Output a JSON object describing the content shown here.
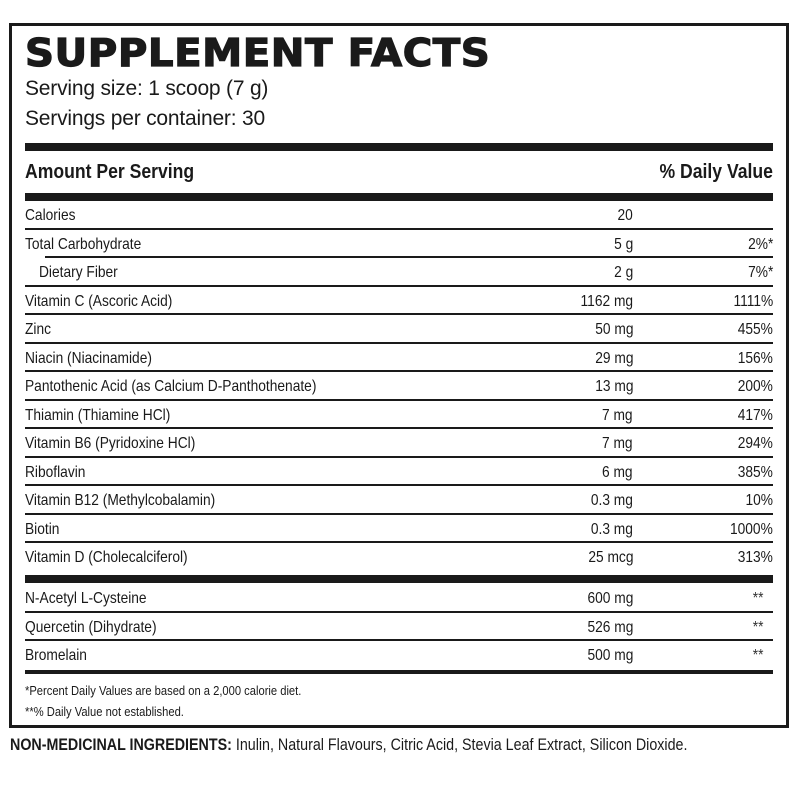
{
  "label": {
    "title": "SUPPLEMENT FACTS",
    "serving_size": "Serving size: 1 scoop (7 g)",
    "servings_per_container": "Servings per container: 30",
    "header_left": "Amount Per Serving",
    "header_right": "% Daily Value",
    "nutrients": [
      {
        "name": "Calories",
        "amount": "20",
        "dv": ""
      },
      {
        "name": "Total Carbohydrate",
        "amount": "5 g",
        "dv": "2%*"
      },
      {
        "name": "Dietary Fiber",
        "amount": "2 g",
        "dv": "7%*"
      },
      {
        "name": "Vitamin C (Ascoric Acid)",
        "amount": "1162 mg",
        "dv": "1111%"
      },
      {
        "name": "Zinc",
        "amount": "50 mg",
        "dv": "455%"
      },
      {
        "name": "Niacin (Niacinamide)",
        "amount": "29 mg",
        "dv": "156%"
      },
      {
        "name": "Pantothenic Acid (as Calcium D-Panthothenate)",
        "amount": "13 mg",
        "dv": "200%"
      },
      {
        "name": "Thiamin (Thiamine HCl)",
        "amount": "7 mg",
        "dv": "417%"
      },
      {
        "name": "Vitamin B6 (Pyridoxine HCl)",
        "amount": "7 mg",
        "dv": "294%"
      },
      {
        "name": "Riboflavin",
        "amount": "6 mg",
        "dv": "385%"
      },
      {
        "name": "Vitamin B12 (Methylcobalamin)",
        "amount": "0.3 mg",
        "dv": "10%"
      },
      {
        "name": "Biotin",
        "amount": "0.3 mg",
        "dv": "1000%"
      },
      {
        "name": "Vitamin D (Cholecalciferol)",
        "amount": "25 mcg",
        "dv": "313%"
      }
    ],
    "other_ingredients": [
      {
        "name": "N-Acetyl L-Cysteine",
        "amount": "600 mg",
        "dv": "**"
      },
      {
        "name": "Quercetin (Dihydrate)",
        "amount": "526 mg",
        "dv": "**"
      },
      {
        "name": "Bromelain",
        "amount": "500 mg",
        "dv": "**"
      }
    ],
    "footnote_1": "*Percent Daily Values are based on a 2,000 calorie diet.",
    "footnote_2": "**% Daily Value not established."
  },
  "non_medicinal": {
    "label": "NON-MEDICINAL INGREDIENTS:",
    "text": " Inulin, Natural Flavours, Citric Acid, Stevia Leaf Extract, Silicon Dioxide."
  }
}
